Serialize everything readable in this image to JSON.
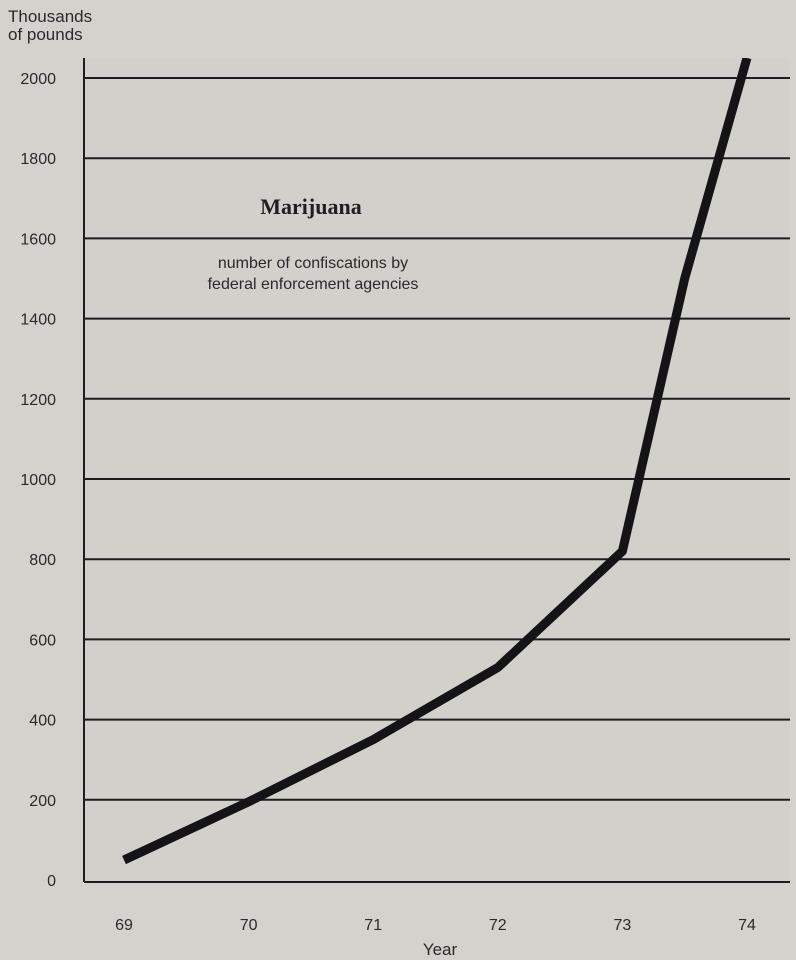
{
  "chart_data": {
    "type": "line",
    "title": "Marijuana",
    "subtitle_lines": [
      "number of confiscations by",
      "federal enforcement agencies"
    ],
    "ylabel_lines": [
      "Thousands",
      "of pounds"
    ],
    "xlabel": "Year",
    "categories": [
      "69",
      "70",
      "71",
      "72",
      "73",
      "74"
    ],
    "x": [
      69,
      70,
      71,
      72,
      73,
      74
    ],
    "y_ticks": [
      "0",
      "200",
      "400",
      "600",
      "800",
      "1000",
      "1200",
      "1400",
      "1600",
      "1800",
      "2000"
    ],
    "ylim": [
      0,
      2000
    ],
    "grid": true,
    "series": [
      {
        "points": [
          [
            69.0,
            50
          ],
          [
            70.0,
            195
          ],
          [
            71.0,
            350
          ],
          [
            72.0,
            530
          ],
          [
            73.0,
            820
          ],
          [
            73.5,
            1500
          ],
          [
            74.0,
            2050
          ]
        ]
      }
    ]
  }
}
